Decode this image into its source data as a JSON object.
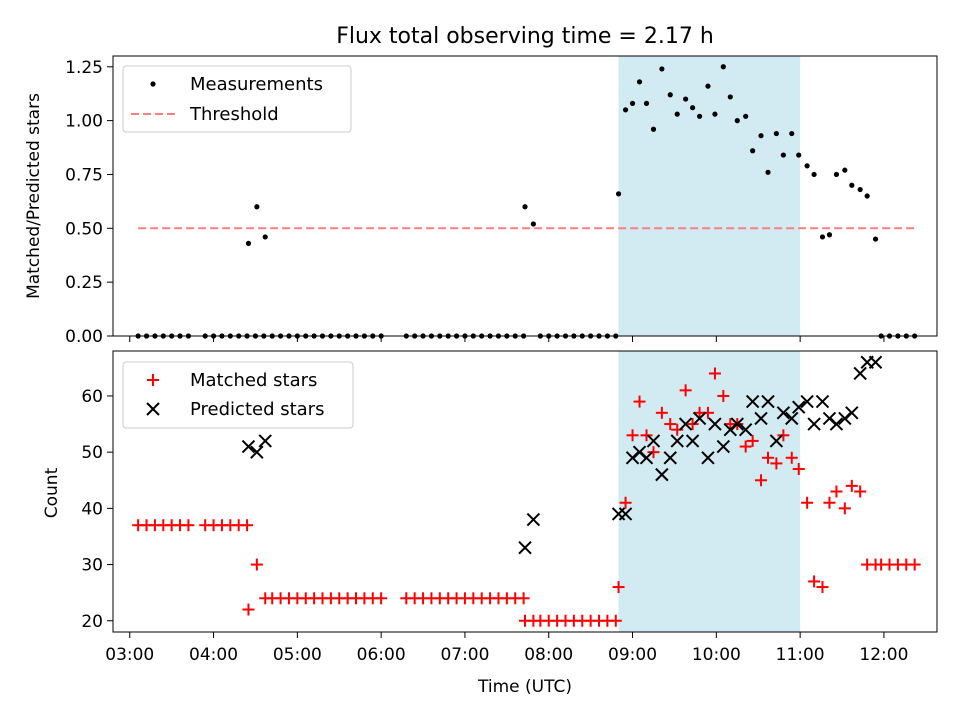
{
  "chart_data": [
    {
      "type": "scatter",
      "title": "Flux total observing time = 2.17 h",
      "ylabel": "Matched/Predicted stars",
      "xlabel": "",
      "xlim": [
        "02:48",
        "12:38"
      ],
      "ylim": [
        0,
        1.3
      ],
      "yticks": [
        "0.00",
        "0.25",
        "0.50",
        "0.75",
        "1.00",
        "1.25"
      ],
      "legend_position": "top-left",
      "highlight_span": [
        "08:50",
        "11:00"
      ],
      "highlight_color": "#add8e6",
      "series": [
        {
          "name": "Measurements",
          "kind": "points",
          "color": "#000000",
          "points": [
            [
              "03:06",
              0.0
            ],
            [
              "03:12",
              0.0
            ],
            [
              "03:18",
              0.0
            ],
            [
              "03:24",
              0.0
            ],
            [
              "03:30",
              0.0
            ],
            [
              "03:36",
              0.0
            ],
            [
              "03:42",
              0.0
            ],
            [
              "03:54",
              0.0
            ],
            [
              "04:00",
              0.0
            ],
            [
              "04:06",
              0.0
            ],
            [
              "04:12",
              0.0
            ],
            [
              "04:18",
              0.0
            ],
            [
              "04:24",
              0.0
            ],
            [
              "04:30",
              0.0
            ],
            [
              "04:36",
              0.0
            ],
            [
              "04:25",
              0.43
            ],
            [
              "04:31",
              0.6
            ],
            [
              "04:37",
              0.46
            ],
            [
              "04:42",
              0.0
            ],
            [
              "04:48",
              0.0
            ],
            [
              "04:54",
              0.0
            ],
            [
              "05:00",
              0.0
            ],
            [
              "05:06",
              0.0
            ],
            [
              "05:12",
              0.0
            ],
            [
              "05:18",
              0.0
            ],
            [
              "05:24",
              0.0
            ],
            [
              "05:30",
              0.0
            ],
            [
              "05:36",
              0.0
            ],
            [
              "05:42",
              0.0
            ],
            [
              "05:48",
              0.0
            ],
            [
              "05:54",
              0.0
            ],
            [
              "06:00",
              0.0
            ],
            [
              "06:18",
              0.0
            ],
            [
              "06:24",
              0.0
            ],
            [
              "06:30",
              0.0
            ],
            [
              "06:36",
              0.0
            ],
            [
              "06:42",
              0.0
            ],
            [
              "06:48",
              0.0
            ],
            [
              "06:54",
              0.0
            ],
            [
              "07:00",
              0.0
            ],
            [
              "07:06",
              0.0
            ],
            [
              "07:12",
              0.0
            ],
            [
              "07:18",
              0.0
            ],
            [
              "07:24",
              0.0
            ],
            [
              "07:30",
              0.0
            ],
            [
              "07:36",
              0.0
            ],
            [
              "07:42",
              0.0
            ],
            [
              "07:43",
              0.6
            ],
            [
              "07:49",
              0.52
            ],
            [
              "07:54",
              0.0
            ],
            [
              "08:00",
              0.0
            ],
            [
              "08:06",
              0.0
            ],
            [
              "08:12",
              0.0
            ],
            [
              "08:18",
              0.0
            ],
            [
              "08:24",
              0.0
            ],
            [
              "08:30",
              0.0
            ],
            [
              "08:36",
              0.0
            ],
            [
              "08:42",
              0.0
            ],
            [
              "08:48",
              0.0
            ],
            [
              "08:50",
              0.66
            ],
            [
              "08:55",
              1.05
            ],
            [
              "09:00",
              1.08
            ],
            [
              "09:05",
              1.18
            ],
            [
              "09:10",
              1.08
            ],
            [
              "09:15",
              0.96
            ],
            [
              "09:21",
              1.24
            ],
            [
              "09:27",
              1.12
            ],
            [
              "09:32",
              1.03
            ],
            [
              "09:38",
              1.1
            ],
            [
              "09:43",
              1.06
            ],
            [
              "09:48",
              1.02
            ],
            [
              "09:54",
              1.16
            ],
            [
              "09:59",
              1.03
            ],
            [
              "10:05",
              1.25
            ],
            [
              "10:10",
              1.11
            ],
            [
              "10:15",
              1.0
            ],
            [
              "10:21",
              1.02
            ],
            [
              "10:26",
              0.86
            ],
            [
              "10:32",
              0.93
            ],
            [
              "10:37",
              0.76
            ],
            [
              "10:43",
              0.94
            ],
            [
              "10:48",
              0.84
            ],
            [
              "10:54",
              0.94
            ],
            [
              "10:59",
              0.84
            ],
            [
              "11:05",
              0.79
            ],
            [
              "11:10",
              0.75
            ],
            [
              "11:16",
              0.46
            ],
            [
              "11:21",
              0.47
            ],
            [
              "11:26",
              0.75
            ],
            [
              "11:32",
              0.77
            ],
            [
              "11:37",
              0.7
            ],
            [
              "11:43",
              0.68
            ],
            [
              "11:48",
              0.65
            ],
            [
              "11:54",
              0.45
            ],
            [
              "11:58",
              0.0
            ],
            [
              "12:04",
              0.0
            ],
            [
              "12:10",
              0.0
            ],
            [
              "12:16",
              0.0
            ],
            [
              "12:22",
              0.0
            ]
          ]
        },
        {
          "name": "Threshold",
          "kind": "dashed-line",
          "color": "#ff7f7f",
          "points": [
            [
              "03:06",
              0.5
            ],
            [
              "12:22",
              0.5
            ]
          ]
        }
      ]
    },
    {
      "type": "scatter",
      "title": "",
      "xlabel": "Time (UTC)",
      "ylabel": "Count",
      "xlim": [
        "02:48",
        "12:38"
      ],
      "ylim": [
        18,
        68
      ],
      "xticks": [
        "03:00",
        "04:00",
        "05:00",
        "06:00",
        "07:00",
        "08:00",
        "09:00",
        "10:00",
        "11:00",
        "12:00"
      ],
      "yticks": [
        "20",
        "30",
        "40",
        "50",
        "60"
      ],
      "legend_position": "top-left",
      "highlight_span": [
        "08:50",
        "11:00"
      ],
      "highlight_color": "#add8e6",
      "series": [
        {
          "name": "Matched stars",
          "marker": "plus",
          "color": "#ff0000",
          "points": [
            [
              "03:06",
              37
            ],
            [
              "03:12",
              37
            ],
            [
              "03:18",
              37
            ],
            [
              "03:24",
              37
            ],
            [
              "03:30",
              37
            ],
            [
              "03:36",
              37
            ],
            [
              "03:42",
              37
            ],
            [
              "03:54",
              37
            ],
            [
              "04:00",
              37
            ],
            [
              "04:06",
              37
            ],
            [
              "04:12",
              37
            ],
            [
              "04:18",
              37
            ],
            [
              "04:24",
              37
            ],
            [
              "04:25",
              22
            ],
            [
              "04:31",
              30
            ],
            [
              "04:37",
              24
            ],
            [
              "04:42",
              24
            ],
            [
              "04:48",
              24
            ],
            [
              "04:54",
              24
            ],
            [
              "05:00",
              24
            ],
            [
              "05:06",
              24
            ],
            [
              "05:12",
              24
            ],
            [
              "05:18",
              24
            ],
            [
              "05:24",
              24
            ],
            [
              "05:30",
              24
            ],
            [
              "05:36",
              24
            ],
            [
              "05:42",
              24
            ],
            [
              "05:48",
              24
            ],
            [
              "05:54",
              24
            ],
            [
              "06:00",
              24
            ],
            [
              "06:18",
              24
            ],
            [
              "06:24",
              24
            ],
            [
              "06:30",
              24
            ],
            [
              "06:36",
              24
            ],
            [
              "06:42",
              24
            ],
            [
              "06:48",
              24
            ],
            [
              "06:54",
              24
            ],
            [
              "07:00",
              24
            ],
            [
              "07:06",
              24
            ],
            [
              "07:12",
              24
            ],
            [
              "07:18",
              24
            ],
            [
              "07:24",
              24
            ],
            [
              "07:30",
              24
            ],
            [
              "07:36",
              24
            ],
            [
              "07:42",
              24
            ],
            [
              "07:43",
              20
            ],
            [
              "07:49",
              20
            ],
            [
              "07:54",
              20
            ],
            [
              "08:00",
              20
            ],
            [
              "08:06",
              20
            ],
            [
              "08:12",
              20
            ],
            [
              "08:18",
              20
            ],
            [
              "08:24",
              20
            ],
            [
              "08:30",
              20
            ],
            [
              "08:36",
              20
            ],
            [
              "08:42",
              20
            ],
            [
              "08:48",
              20
            ],
            [
              "08:50",
              26
            ],
            [
              "08:55",
              41
            ],
            [
              "09:00",
              53
            ],
            [
              "09:05",
              59
            ],
            [
              "09:10",
              53
            ],
            [
              "09:15",
              50
            ],
            [
              "09:21",
              57
            ],
            [
              "09:27",
              55
            ],
            [
              "09:32",
              54
            ],
            [
              "09:38",
              61
            ],
            [
              "09:43",
              55
            ],
            [
              "09:48",
              57
            ],
            [
              "09:54",
              57
            ],
            [
              "09:59",
              64
            ],
            [
              "10:05",
              60
            ],
            [
              "10:10",
              55
            ],
            [
              "10:15",
              55
            ],
            [
              "10:21",
              51
            ],
            [
              "10:26",
              52
            ],
            [
              "10:32",
              45
            ],
            [
              "10:37",
              49
            ],
            [
              "10:43",
              48
            ],
            [
              "10:48",
              53
            ],
            [
              "10:54",
              49
            ],
            [
              "10:59",
              47
            ],
            [
              "11:05",
              41
            ],
            [
              "11:10",
              27
            ],
            [
              "11:16",
              26
            ],
            [
              "11:21",
              41
            ],
            [
              "11:26",
              43
            ],
            [
              "11:32",
              40
            ],
            [
              "11:37",
              44
            ],
            [
              "11:43",
              43
            ],
            [
              "11:48",
              30
            ],
            [
              "11:54",
              30
            ],
            [
              "11:58",
              30
            ],
            [
              "12:04",
              30
            ],
            [
              "12:10",
              30
            ],
            [
              "12:16",
              30
            ],
            [
              "12:22",
              30
            ]
          ]
        },
        {
          "name": "Predicted stars",
          "marker": "x",
          "color": "#000000",
          "points": [
            [
              "04:25",
              51
            ],
            [
              "04:31",
              50
            ],
            [
              "04:37",
              52
            ],
            [
              "07:43",
              33
            ],
            [
              "07:49",
              38
            ],
            [
              "08:50",
              39
            ],
            [
              "08:55",
              39
            ],
            [
              "09:00",
              49
            ],
            [
              "09:05",
              50
            ],
            [
              "09:10",
              49
            ],
            [
              "09:15",
              52
            ],
            [
              "09:21",
              46
            ],
            [
              "09:27",
              49
            ],
            [
              "09:32",
              52
            ],
            [
              "09:38",
              55
            ],
            [
              "09:43",
              52
            ],
            [
              "09:48",
              56
            ],
            [
              "09:54",
              49
            ],
            [
              "09:59",
              55
            ],
            [
              "10:05",
              51
            ],
            [
              "10:10",
              54
            ],
            [
              "10:15",
              55
            ],
            [
              "10:21",
              54
            ],
            [
              "10:26",
              59
            ],
            [
              "10:32",
              56
            ],
            [
              "10:37",
              59
            ],
            [
              "10:43",
              52
            ],
            [
              "10:48",
              57
            ],
            [
              "10:54",
              56
            ],
            [
              "10:59",
              58
            ],
            [
              "11:05",
              59
            ],
            [
              "11:10",
              55
            ],
            [
              "11:16",
              59
            ],
            [
              "11:21",
              56
            ],
            [
              "11:26",
              55
            ],
            [
              "11:32",
              56
            ],
            [
              "11:37",
              57
            ],
            [
              "11:43",
              64
            ],
            [
              "11:48",
              66
            ],
            [
              "11:54",
              66
            ]
          ]
        }
      ]
    }
  ]
}
